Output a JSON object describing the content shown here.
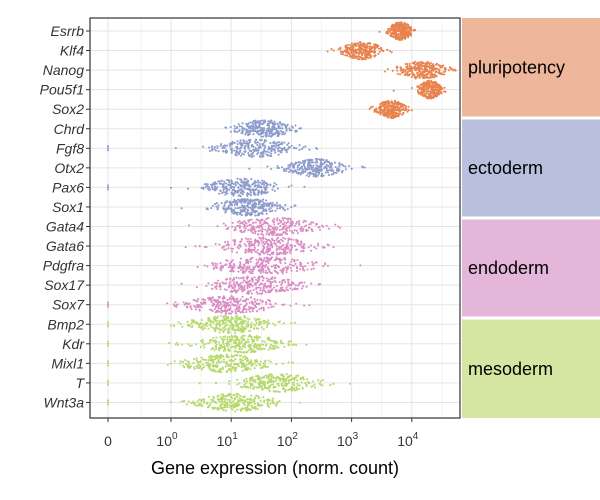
{
  "chart_data": {
    "type": "beeswarm",
    "xlabel": "Gene expression (norm. count)",
    "x_scale": "log10 (with 0 shown at left)",
    "x_ticks": [
      {
        "value": 0,
        "label": "0",
        "exp": ""
      },
      {
        "value": 1,
        "label": "10",
        "exp": "0"
      },
      {
        "value": 10,
        "label": "10",
        "exp": "1"
      },
      {
        "value": 100,
        "label": "10",
        "exp": "2"
      },
      {
        "value": 1000,
        "label": "10",
        "exp": "3"
      },
      {
        "value": 10000,
        "label": "10",
        "exp": "4"
      }
    ],
    "xlim": [
      0,
      80000
    ],
    "genes": [
      {
        "name": "Esrrb",
        "group": "pluripotency",
        "median": 6500,
        "spread": 0.15,
        "outliers": []
      },
      {
        "name": "Klf4",
        "group": "pluripotency",
        "median": 1500,
        "spread": 0.25,
        "outliers": [
          400
        ]
      },
      {
        "name": "Nanog",
        "group": "pluripotency",
        "median": 15000,
        "spread": 0.3,
        "outliers": [
          4000,
          45000
        ]
      },
      {
        "name": "Pou5f1",
        "group": "pluripotency",
        "median": 20000,
        "spread": 0.15,
        "outliers": [
          5000
        ]
      },
      {
        "name": "Sox2",
        "group": "pluripotency",
        "median": 4500,
        "spread": 0.18,
        "outliers": [
          2000
        ]
      },
      {
        "name": "Chrd",
        "group": "ectoderm",
        "median": 35,
        "spread": 0.35,
        "outliers": [
          8
        ]
      },
      {
        "name": "Fgf8",
        "group": "ectoderm",
        "median": 25,
        "spread": 0.5,
        "outliers": [
          0,
          1.2,
          120
        ]
      },
      {
        "name": "Otx2",
        "group": "ectoderm",
        "median": 250,
        "spread": 0.35,
        "outliers": [
          20,
          40,
          1500
        ]
      },
      {
        "name": "Pax6",
        "group": "ectoderm",
        "median": 15,
        "spread": 0.45,
        "outliers": [
          0,
          1,
          60
        ]
      },
      {
        "name": "Sox1",
        "group": "ectoderm",
        "median": 20,
        "spread": 0.4,
        "outliers": [
          1.5,
          100
        ]
      },
      {
        "name": "Gata4",
        "group": "endoderm",
        "median": 50,
        "spread": 0.55,
        "outliers": [
          2,
          600
        ]
      },
      {
        "name": "Gata6",
        "group": "endoderm",
        "median": 40,
        "spread": 0.6,
        "outliers": [
          3,
          500
        ]
      },
      {
        "name": "Pdgfra",
        "group": "endoderm",
        "median": 35,
        "spread": 0.6,
        "outliers": [
          4,
          1400
        ]
      },
      {
        "name": "Sox17",
        "group": "endoderm",
        "median": 25,
        "spread": 0.55,
        "outliers": [
          1.5,
          300
        ]
      },
      {
        "name": "Sox7",
        "group": "endoderm",
        "median": 10,
        "spread": 0.55,
        "outliers": [
          0,
          120
        ]
      },
      {
        "name": "Bmp2",
        "group": "mesoderm",
        "median": 10,
        "spread": 0.5,
        "outliers": [
          0,
          1,
          100
        ]
      },
      {
        "name": "Kdr",
        "group": "mesoderm",
        "median": 15,
        "spread": 0.5,
        "outliers": [
          0,
          1.2,
          120
        ]
      },
      {
        "name": "Mixl1",
        "group": "mesoderm",
        "median": 8,
        "spread": 0.5,
        "outliers": [
          0,
          1,
          90
        ]
      },
      {
        "name": "T",
        "group": "mesoderm",
        "median": 60,
        "spread": 0.5,
        "outliers": [
          0,
          3,
          500
        ]
      },
      {
        "name": "Wnt3a",
        "group": "mesoderm",
        "median": 12,
        "spread": 0.45,
        "outliers": [
          0,
          1.5,
          140
        ]
      }
    ],
    "groups": [
      {
        "name": "pluripotency",
        "label": "pluripotency",
        "genes": [
          "Esrrb",
          "Klf4",
          "Nanog",
          "Pou5f1",
          "Sox2"
        ],
        "point_color": "#E8834E",
        "band_color": "#EEB79B"
      },
      {
        "name": "ectoderm",
        "label": "ectoderm",
        "genes": [
          "Chrd",
          "Fgf8",
          "Otx2",
          "Pax6",
          "Sox1"
        ],
        "point_color": "#8D9CCB",
        "band_color": "#B9C0DD"
      },
      {
        "name": "endoderm",
        "label": "endoderm",
        "genes": [
          "Gata4",
          "Gata6",
          "Pdgfra",
          "Sox17",
          "Sox7"
        ],
        "point_color": "#D98CC4",
        "band_color": "#E4B6D9"
      },
      {
        "name": "mesoderm",
        "label": "mesoderm",
        "genes": [
          "Bmp2",
          "Kdr",
          "Mixl1",
          "T",
          "Wnt3a"
        ],
        "point_color": "#B5D96A",
        "band_color": "#D4E6A2"
      }
    ],
    "grid": true,
    "legend": "none"
  }
}
